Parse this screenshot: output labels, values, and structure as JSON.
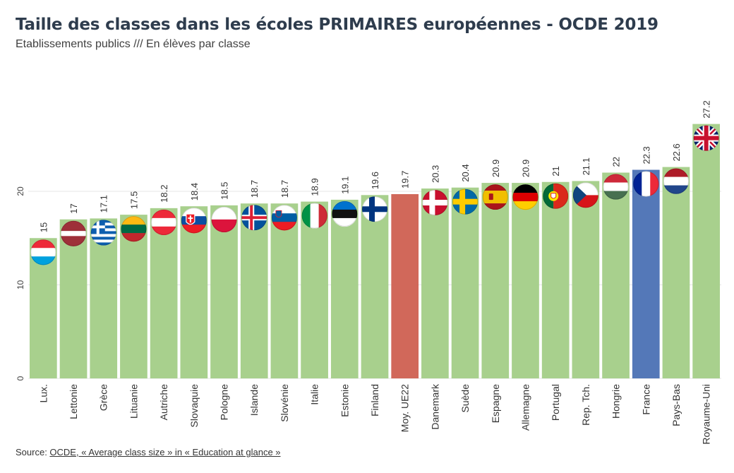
{
  "title": "Taille des classes dans les écoles PRIMAIRES européennes - OCDE 2019",
  "subtitle": "Etablissements publics /// En élèves par classe",
  "source": {
    "prefix": "Source: ",
    "link_text": "OCDE, « Average class size » in « Education at glance »"
  },
  "colors": {
    "default_bar": "#a8d08d",
    "average_bar": "#d1685a",
    "highlight_bar": "#5478b8",
    "grid": "#e4e4e4",
    "text": "#333333"
  },
  "chart_data": {
    "type": "bar",
    "title": "Taille des classes dans les écoles PRIMAIRES européennes - OCDE 2019",
    "subtitle": "Etablissements publics /// En élèves par classe",
    "categories": [
      "Lux.",
      "Lettonie",
      "Grèce",
      "Lituanie",
      "Autriche",
      "Slovaquie",
      "Pologne",
      "Islande",
      "Slovénie",
      "Italie",
      "Estonie",
      "Finland",
      "Moy. UE22",
      "Danemark",
      "Suède",
      "Espagne",
      "Allemagne",
      "Portugal",
      "Rep. Tch.",
      "Hongrie",
      "France",
      "Pays-Bas",
      "Royaume-Uni"
    ],
    "values": [
      15,
      17,
      17.1,
      17.5,
      18.2,
      18.4,
      18.5,
      18.7,
      18.7,
      18.9,
      19.1,
      19.6,
      19.7,
      20.3,
      20.4,
      20.9,
      20.9,
      21,
      21.1,
      22,
      22.3,
      22.6,
      27.2
    ],
    "value_labels": [
      "15",
      "17",
      "17.1",
      "17.5",
      "18.2",
      "18.4",
      "18.5",
      "18.7",
      "18.7",
      "18.9",
      "19.1",
      "19.6",
      "19.7",
      "20.3",
      "20.4",
      "20.9",
      "20.9",
      "21",
      "21.1",
      "22",
      "22.3",
      "22.6",
      "27.2"
    ],
    "flags": [
      "lu",
      "lv",
      "gr",
      "lt",
      "at",
      "sk",
      "pl",
      "is",
      "si",
      "it",
      "ee",
      "fi",
      null,
      "dk",
      "se",
      "es",
      "de",
      "pt",
      "cz",
      "hu",
      "fr",
      "nl",
      "gb"
    ],
    "bar_colors": [
      "#a8d08d",
      "#a8d08d",
      "#a8d08d",
      "#a8d08d",
      "#a8d08d",
      "#a8d08d",
      "#a8d08d",
      "#a8d08d",
      "#a8d08d",
      "#a8d08d",
      "#a8d08d",
      "#a8d08d",
      "#d1685a",
      "#a8d08d",
      "#a8d08d",
      "#a8d08d",
      "#a8d08d",
      "#a8d08d",
      "#a8d08d",
      "#a8d08d",
      "#5478b8",
      "#a8d08d",
      "#a8d08d"
    ],
    "yticks": [
      0,
      10,
      20
    ],
    "ylim": [
      0,
      30
    ],
    "xlabel": "",
    "ylabel": "",
    "grid": true,
    "legend": "none"
  }
}
